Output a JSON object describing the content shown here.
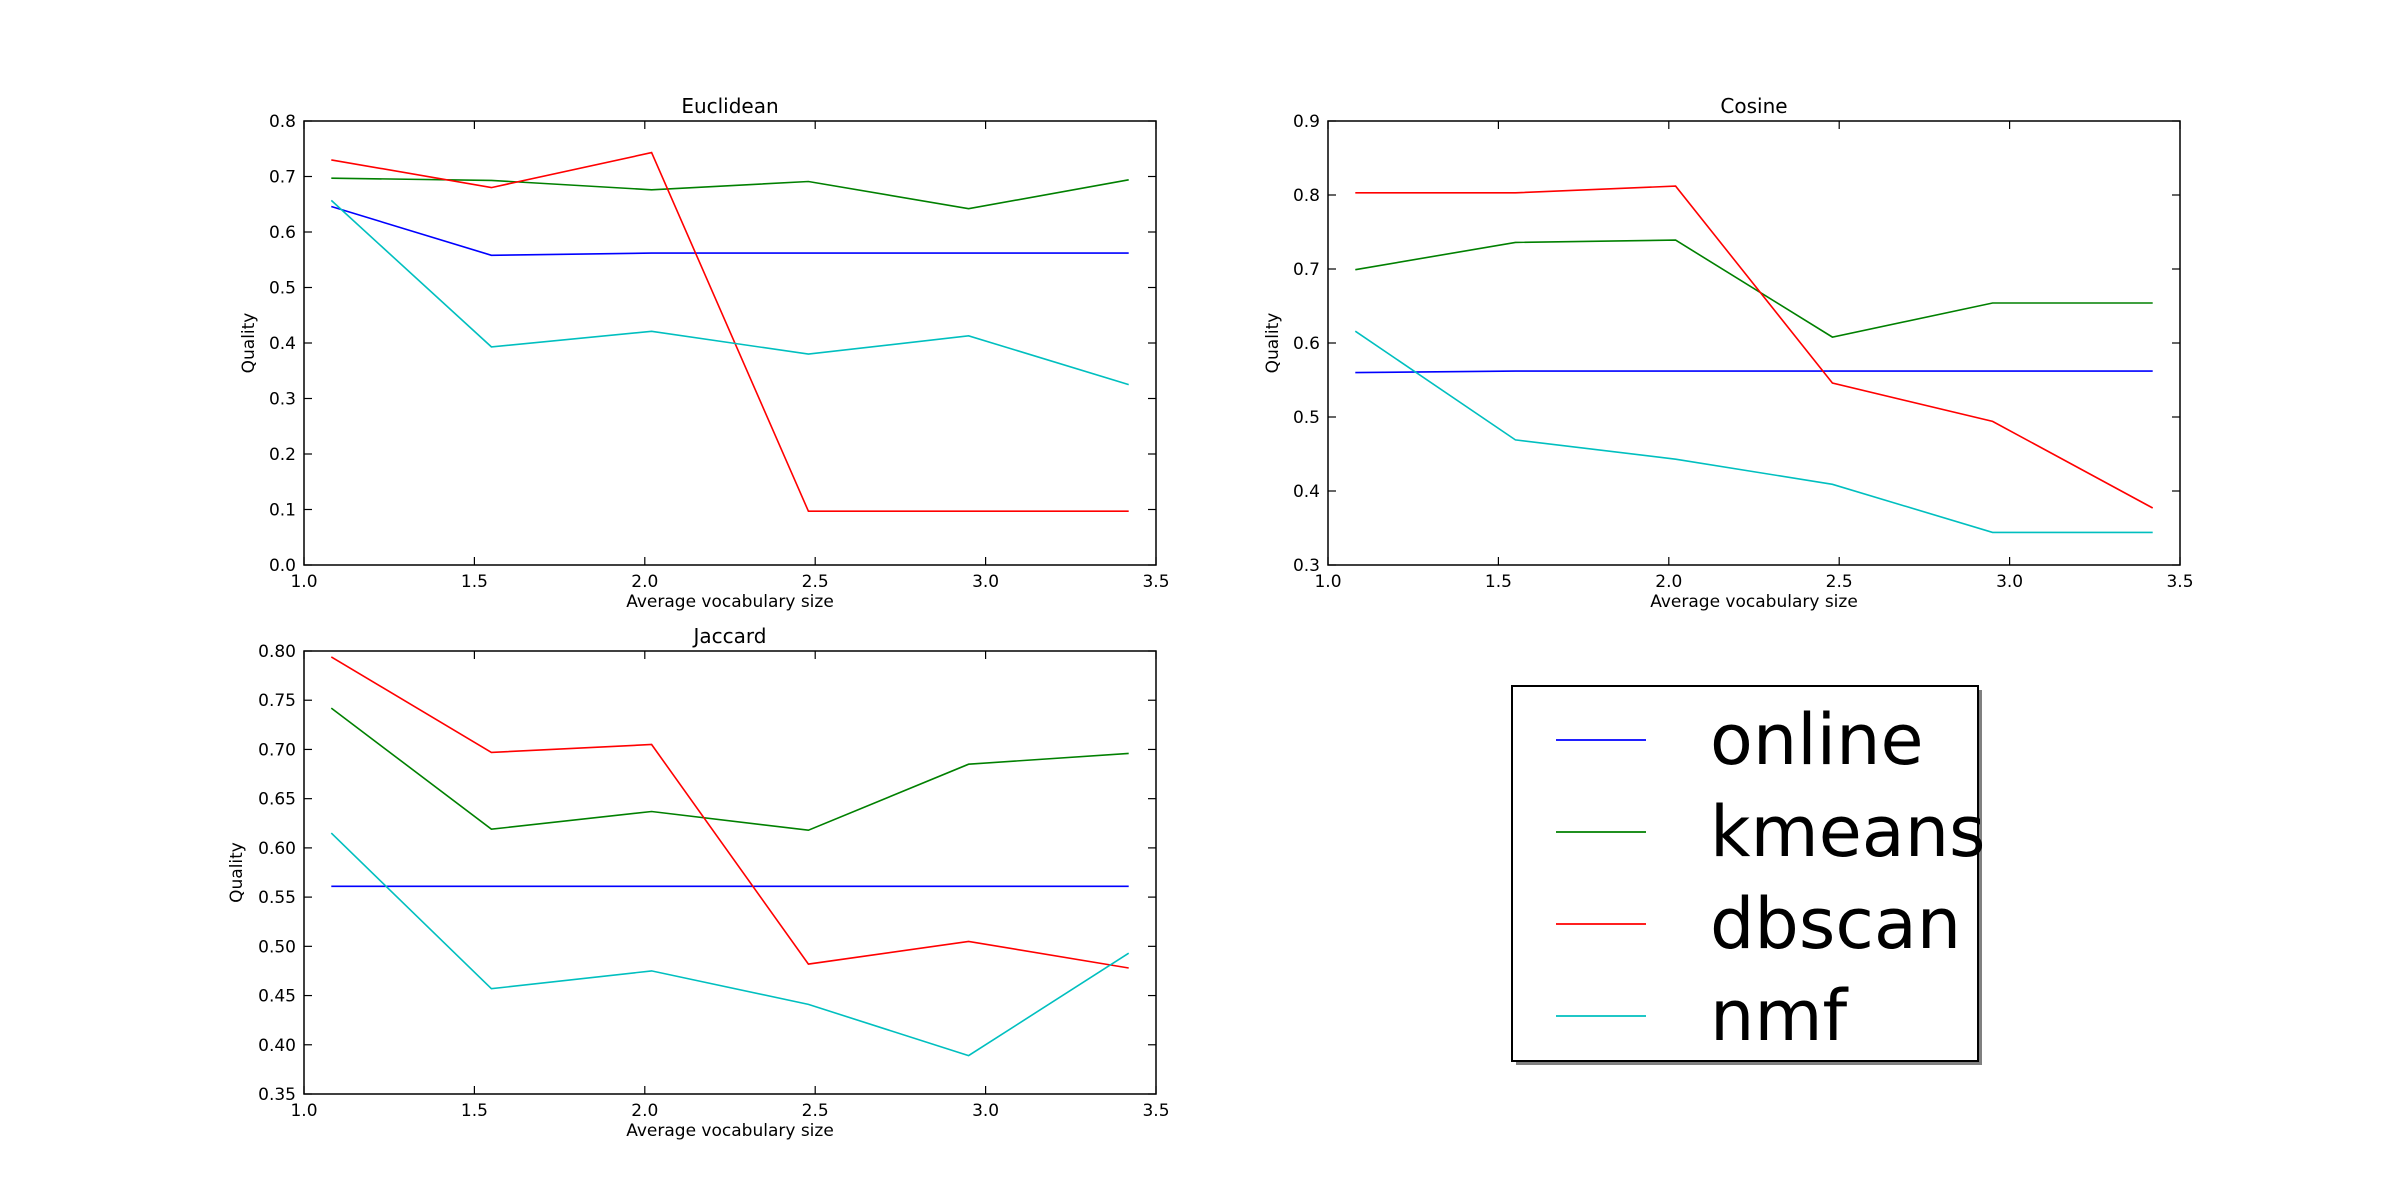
{
  "series_colors": {
    "online": "#0000ff",
    "kmeans": "#008000",
    "dbscan": "#ff0000",
    "nmf": "#00bfbf"
  },
  "legend": {
    "entries": [
      "online",
      "kmeans",
      "dbscan",
      "nmf"
    ],
    "placement": "bottom-right empty quadrant"
  },
  "chart_data": [
    {
      "type": "line",
      "title": "Euclidean",
      "xlabel": "Average vocabulary size",
      "ylabel": "Quality",
      "xlim": [
        1.0,
        3.5
      ],
      "ylim": [
        0.0,
        0.8
      ],
      "xticks": [
        "1.0",
        "1.5",
        "2.0",
        "2.5",
        "3.0",
        "3.5"
      ],
      "yticks": [
        "0.0",
        "0.1",
        "0.2",
        "0.3",
        "0.4",
        "0.5",
        "0.6",
        "0.7",
        "0.8"
      ],
      "x": [
        1.08,
        1.55,
        2.02,
        2.48,
        2.95,
        3.42
      ],
      "grid": false,
      "series": [
        {
          "name": "online",
          "values": [
            0.646,
            0.558,
            0.562,
            0.562,
            0.562,
            0.562
          ]
        },
        {
          "name": "kmeans",
          "values": [
            0.697,
            0.693,
            0.676,
            0.691,
            0.642,
            0.694
          ]
        },
        {
          "name": "dbscan",
          "values": [
            0.73,
            0.68,
            0.743,
            0.097,
            0.097,
            0.097
          ]
        },
        {
          "name": "nmf",
          "values": [
            0.657,
            0.393,
            0.421,
            0.38,
            0.413,
            0.325
          ]
        }
      ]
    },
    {
      "type": "line",
      "title": "Cosine",
      "xlabel": "Average vocabulary size",
      "ylabel": "Quality",
      "xlim": [
        1.0,
        3.5
      ],
      "ylim": [
        0.3,
        0.9
      ],
      "xticks": [
        "1.0",
        "1.5",
        "2.0",
        "2.5",
        "3.0",
        "3.5"
      ],
      "yticks": [
        "0.3",
        "0.4",
        "0.5",
        "0.6",
        "0.7",
        "0.8",
        "0.9"
      ],
      "x": [
        1.08,
        1.55,
        2.02,
        2.48,
        2.95,
        3.42
      ],
      "grid": false,
      "series": [
        {
          "name": "online",
          "values": [
            0.56,
            0.562,
            0.562,
            0.562,
            0.562,
            0.562
          ]
        },
        {
          "name": "kmeans",
          "values": [
            0.699,
            0.736,
            0.739,
            0.608,
            0.654,
            0.654
          ]
        },
        {
          "name": "dbscan",
          "values": [
            0.803,
            0.803,
            0.812,
            0.546,
            0.494,
            0.377
          ]
        },
        {
          "name": "nmf",
          "values": [
            0.616,
            0.469,
            0.443,
            0.409,
            0.344,
            0.344
          ]
        }
      ]
    },
    {
      "type": "line",
      "title": "Jaccard",
      "xlabel": "Average vocabulary size",
      "ylabel": "Quality",
      "xlim": [
        1.0,
        3.5
      ],
      "ylim": [
        0.35,
        0.8
      ],
      "xticks": [
        "1.0",
        "1.5",
        "2.0",
        "2.5",
        "3.0",
        "3.5"
      ],
      "yticks": [
        "0.35",
        "0.40",
        "0.45",
        "0.50",
        "0.55",
        "0.60",
        "0.65",
        "0.70",
        "0.75",
        "0.80"
      ],
      "x": [
        1.08,
        1.55,
        2.02,
        2.48,
        2.95,
        3.42
      ],
      "grid": false,
      "series": [
        {
          "name": "online",
          "values": [
            0.561,
            0.561,
            0.561,
            0.561,
            0.561,
            0.561
          ]
        },
        {
          "name": "kmeans",
          "values": [
            0.742,
            0.619,
            0.637,
            0.618,
            0.685,
            0.696
          ]
        },
        {
          "name": "dbscan",
          "values": [
            0.794,
            0.697,
            0.705,
            0.482,
            0.505,
            0.478
          ]
        },
        {
          "name": "nmf",
          "values": [
            0.615,
            0.457,
            0.475,
            0.441,
            0.389,
            0.493
          ]
        }
      ]
    }
  ]
}
